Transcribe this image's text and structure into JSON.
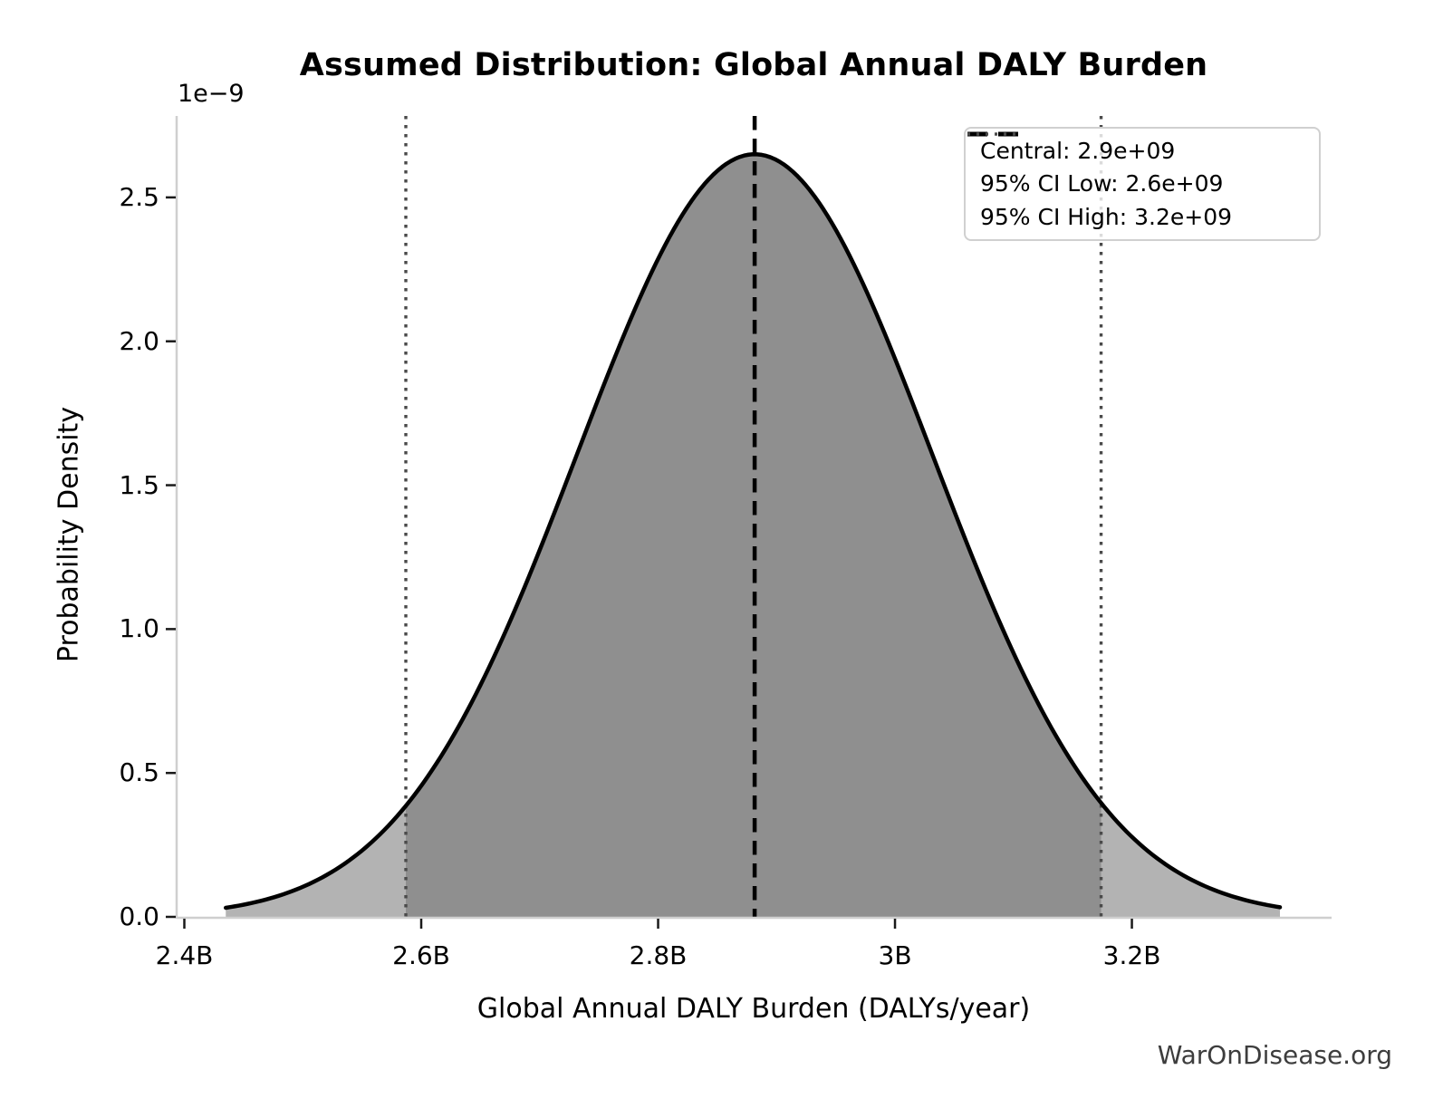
{
  "chart_data": {
    "type": "area",
    "title": "Assumed Distribution: Global Annual DALY Burden",
    "xlabel": "Global Annual DALY Burden (DALYs/year)",
    "ylabel": "Probability Density",
    "y_scale_offset_label": "1e−9",
    "watermark": "WarOnDisease.org",
    "grid": false,
    "legend_position": "upper right",
    "x_ticks": {
      "labels": [
        "2.4B",
        "2.6B",
        "2.8B",
        "3B",
        "3.2B"
      ],
      "values": [
        2400000000.0,
        2600000000.0,
        2800000000.0,
        3000000000.0,
        3200000000.0
      ]
    },
    "y_ticks": {
      "labels": [
        "0.0",
        "0.5",
        "1.0",
        "1.5",
        "2.0",
        "2.5"
      ],
      "values": [
        0,
        5e-10,
        1e-09,
        1.5e-09,
        2e-09,
        2.5e-09
      ]
    },
    "xlim": [
      2393500000.0,
      3368600000.0
    ],
    "ylim": [
      0,
      2.783e-09
    ],
    "distribution": {
      "shape": "normal",
      "mean": 2881500000.0,
      "sigma": 150000000.0,
      "peak_density": 2.65e-09,
      "x_range": [
        2435000000.0,
        3325000000.0
      ]
    },
    "vlines": [
      {
        "id": "central",
        "label": "Central: 2.9e+09",
        "x": 2881500000.0,
        "style": "dashed",
        "color": "#000000",
        "width": 4.5
      },
      {
        "id": "ci-low",
        "label": "95% CI Low: 2.6e+09",
        "x": 2587000000.0,
        "style": "dotted",
        "color": "#4a4a4a",
        "width": 3.4
      },
      {
        "id": "ci-high",
        "label": "95% CI High: 3.2e+09",
        "x": 3174000000.0,
        "style": "dotted",
        "color": "#4a4a4a",
        "width": 3.4
      }
    ],
    "colors": {
      "curve": "#000000",
      "fill_inside_ci": "#8f8f8f",
      "fill_outside_ci": "#b3b3b3",
      "spine": "#cfcfcf",
      "tick": "#1a1a1a",
      "text": "#000000",
      "watermark": "#3d3d3d",
      "legend_border": "#d0d0d0",
      "background": "#ffffff"
    }
  }
}
